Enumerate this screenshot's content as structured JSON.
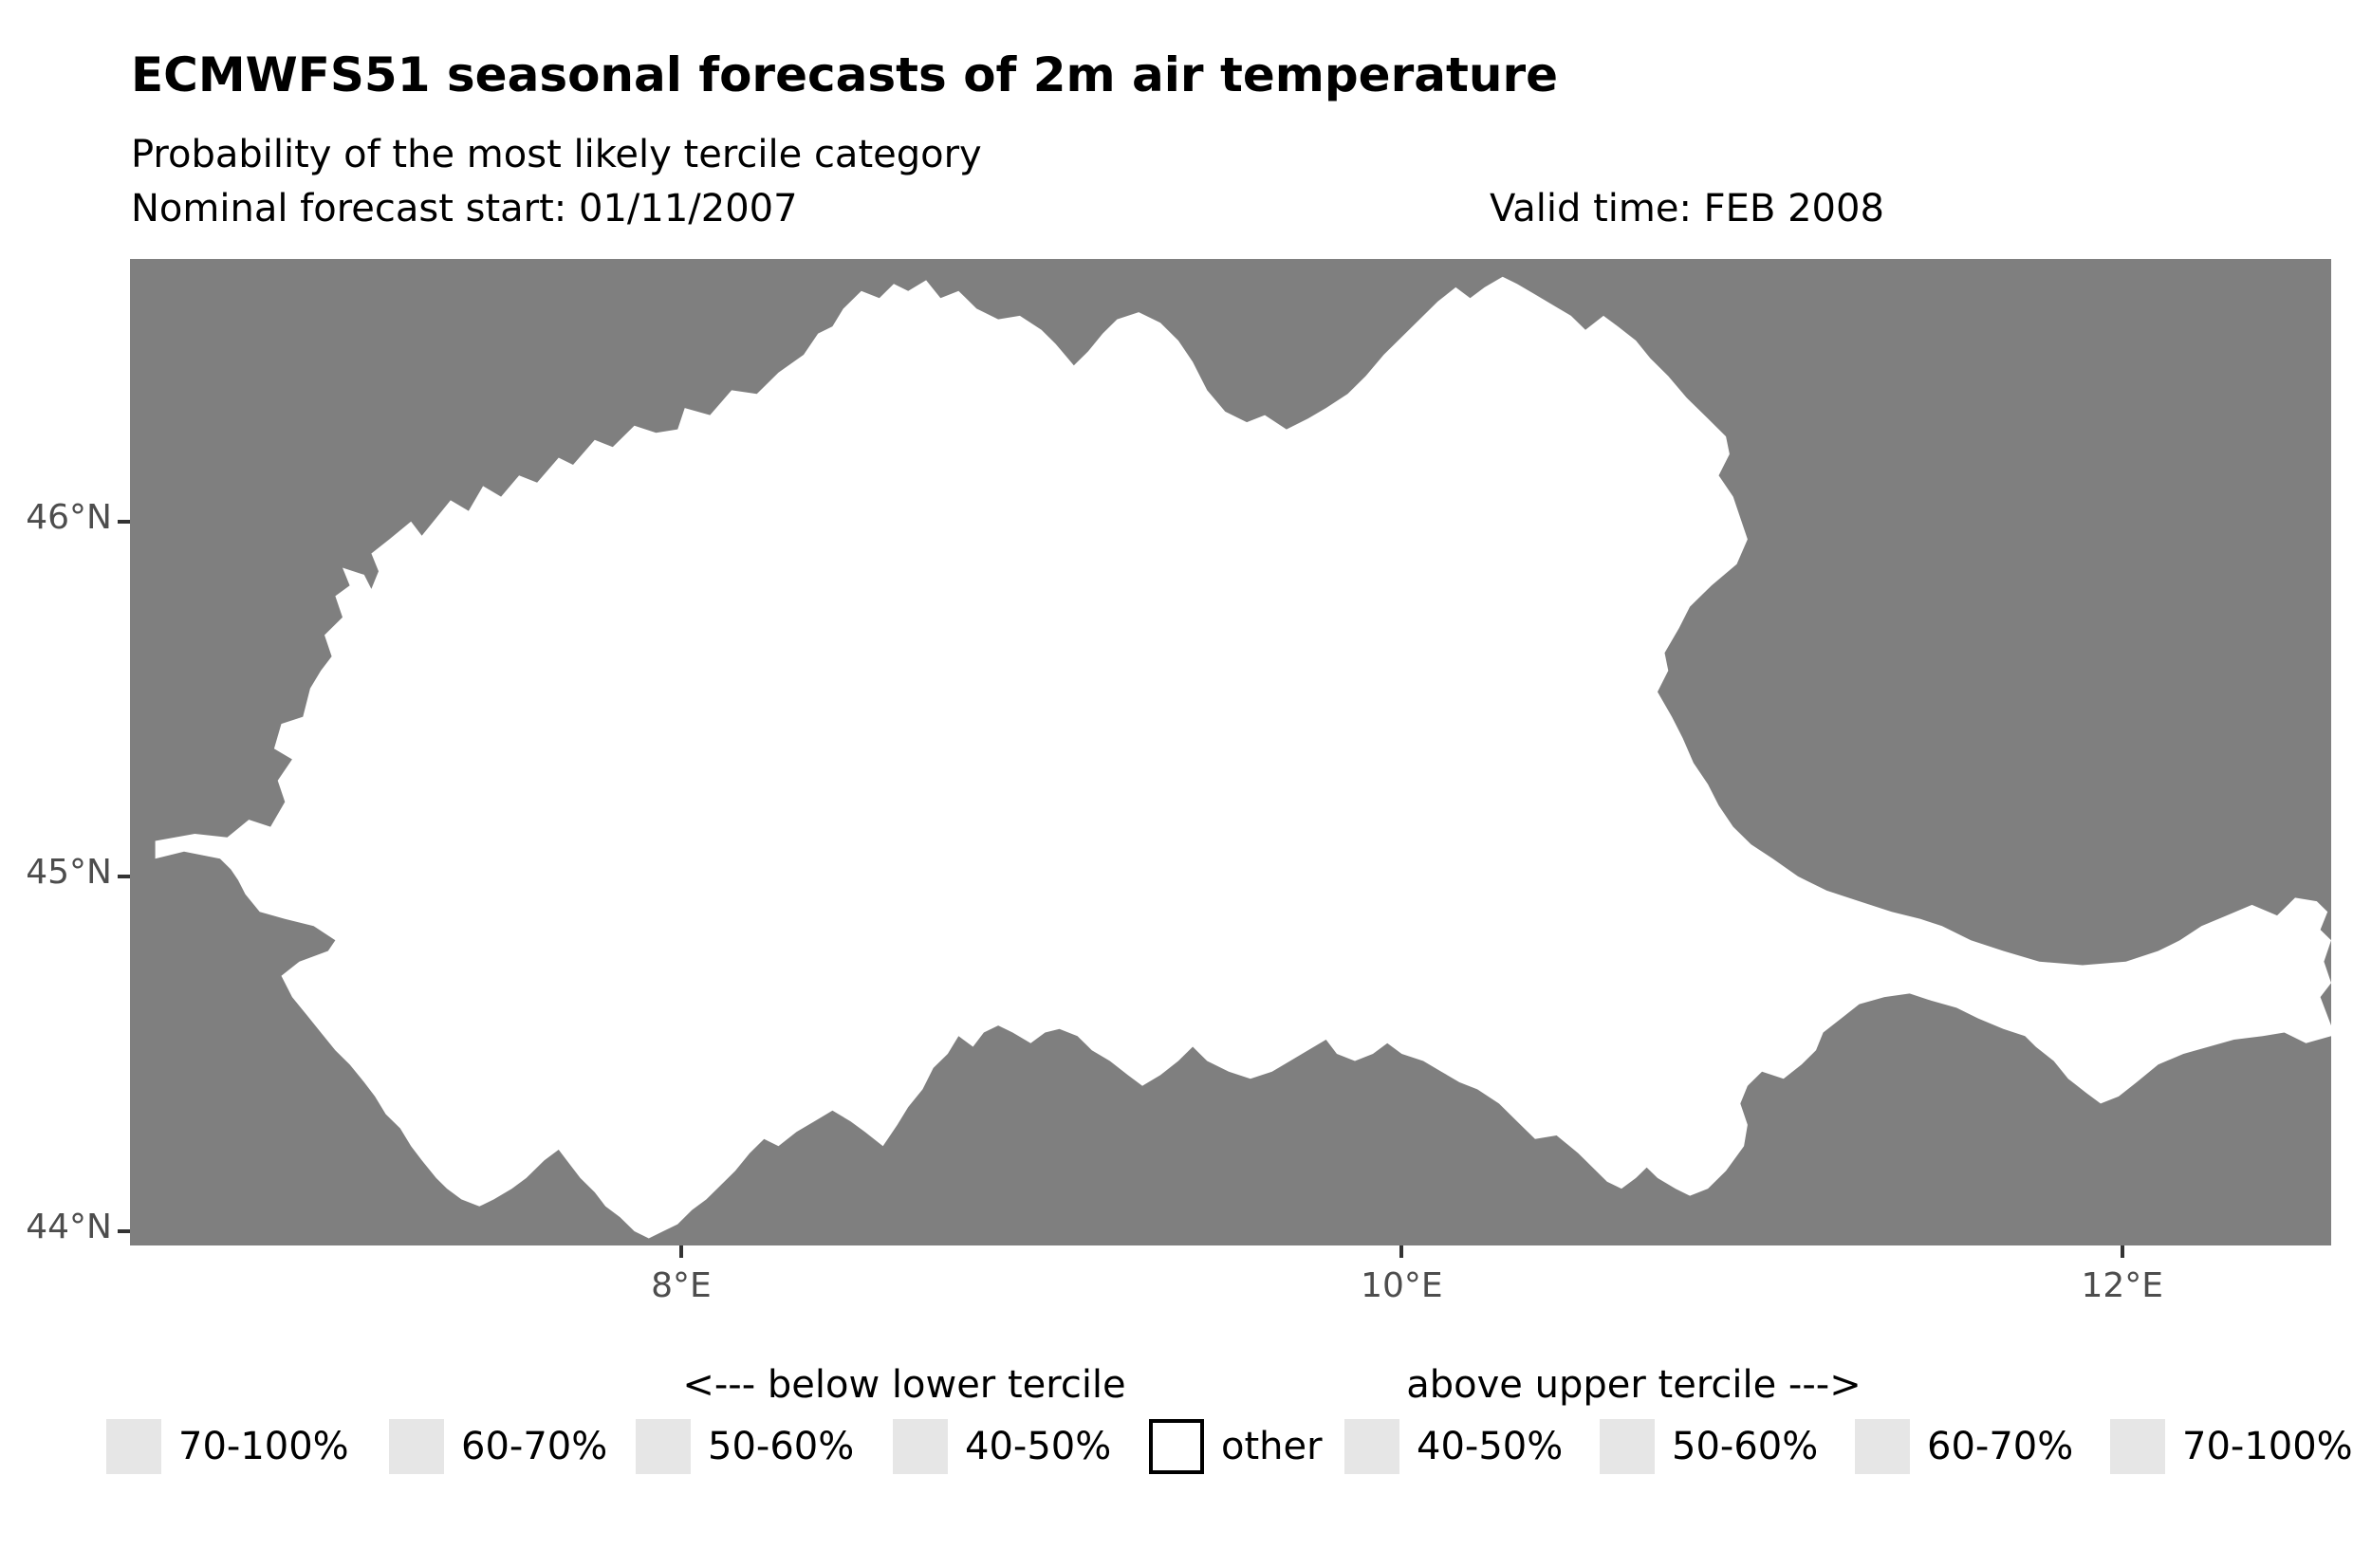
{
  "header": {
    "title": "ECMWFS51 seasonal forecasts of 2m air temperature",
    "subtitle": "Probability of the most likely tercile category",
    "forecast_start": "Nominal forecast start: 01/11/2007",
    "valid_time": "Valid time: FEB 2008"
  },
  "colors": {
    "page_background": "#ffffff",
    "map_background": "#7f7f7f",
    "region_fill": "#ffffff",
    "legend_swatch_fill": "#e6e6e6",
    "other_swatch_fill": "#ffffff",
    "other_swatch_border": "#000000",
    "axis_text": "#4d4d4d",
    "tick_mark": "#333333"
  },
  "legend": {
    "left_header": "<--- below lower tercile",
    "right_header": "above upper tercile --->",
    "items": [
      {
        "label": "70-100%",
        "type": "tercile"
      },
      {
        "label": "60-70%",
        "type": "tercile"
      },
      {
        "label": "50-60%",
        "type": "tercile"
      },
      {
        "label": "40-50%",
        "type": "tercile"
      },
      {
        "label": "other",
        "type": "other"
      },
      {
        "label": "40-50%",
        "type": "tercile"
      },
      {
        "label": "50-60%",
        "type": "tercile"
      },
      {
        "label": "60-70%",
        "type": "tercile"
      },
      {
        "label": "70-100%",
        "type": "tercile"
      }
    ]
  },
  "chart_data": {
    "type": "map",
    "projection": "lonlat",
    "x_axis": {
      "range": [
        6.47,
        12.58
      ],
      "ticks": [
        {
          "value": 8,
          "label": "8°E"
        },
        {
          "value": 10,
          "label": "10°E"
        },
        {
          "value": 12,
          "label": "12°E"
        }
      ]
    },
    "y_axis": {
      "range": [
        43.96,
        46.74
      ],
      "ticks": [
        {
          "value": 44,
          "label": "44°N"
        },
        {
          "value": 45,
          "label": "45°N"
        },
        {
          "value": 46,
          "label": "46°N"
        }
      ]
    },
    "region_category": "other",
    "region_outline_lonlat": [
      [
        6.54,
        45.05
      ],
      [
        6.54,
        45.1
      ],
      [
        6.65,
        45.12
      ],
      [
        6.74,
        45.11
      ],
      [
        6.8,
        45.16
      ],
      [
        6.86,
        45.14
      ],
      [
        6.9,
        45.21
      ],
      [
        6.88,
        45.27
      ],
      [
        6.92,
        45.33
      ],
      [
        6.87,
        45.36
      ],
      [
        6.89,
        45.43
      ],
      [
        6.95,
        45.45
      ],
      [
        6.97,
        45.53
      ],
      [
        7.0,
        45.58
      ],
      [
        7.03,
        45.62
      ],
      [
        7.01,
        45.68
      ],
      [
        7.06,
        45.73
      ],
      [
        7.04,
        45.79
      ],
      [
        7.08,
        45.82
      ],
      [
        7.06,
        45.87
      ],
      [
        7.12,
        45.85
      ],
      [
        7.14,
        45.81
      ],
      [
        7.16,
        45.86
      ],
      [
        7.14,
        45.91
      ],
      [
        7.19,
        45.95
      ],
      [
        7.25,
        46.0
      ],
      [
        7.28,
        45.96
      ],
      [
        7.32,
        46.01
      ],
      [
        7.36,
        46.06
      ],
      [
        7.41,
        46.03
      ],
      [
        7.45,
        46.1
      ],
      [
        7.5,
        46.07
      ],
      [
        7.55,
        46.13
      ],
      [
        7.6,
        46.11
      ],
      [
        7.66,
        46.18
      ],
      [
        7.7,
        46.16
      ],
      [
        7.76,
        46.23
      ],
      [
        7.81,
        46.21
      ],
      [
        7.87,
        46.27
      ],
      [
        7.93,
        46.25
      ],
      [
        7.99,
        46.26
      ],
      [
        8.01,
        46.32
      ],
      [
        8.08,
        46.3
      ],
      [
        8.14,
        46.37
      ],
      [
        8.21,
        46.36
      ],
      [
        8.27,
        46.42
      ],
      [
        8.34,
        46.47
      ],
      [
        8.38,
        46.53
      ],
      [
        8.42,
        46.55
      ],
      [
        8.45,
        46.6
      ],
      [
        8.5,
        46.65
      ],
      [
        8.55,
        46.63
      ],
      [
        8.59,
        46.67
      ],
      [
        8.63,
        46.65
      ],
      [
        8.68,
        46.68
      ],
      [
        8.72,
        46.63
      ],
      [
        8.77,
        46.65
      ],
      [
        8.82,
        46.6
      ],
      [
        8.88,
        46.57
      ],
      [
        8.94,
        46.58
      ],
      [
        9.0,
        46.54
      ],
      [
        9.04,
        46.5
      ],
      [
        9.09,
        46.44
      ],
      [
        9.13,
        46.48
      ],
      [
        9.17,
        46.53
      ],
      [
        9.21,
        46.57
      ],
      [
        9.27,
        46.59
      ],
      [
        9.33,
        46.56
      ],
      [
        9.38,
        46.51
      ],
      [
        9.42,
        46.45
      ],
      [
        9.46,
        46.37
      ],
      [
        9.51,
        46.31
      ],
      [
        9.57,
        46.28
      ],
      [
        9.62,
        46.3
      ],
      [
        9.68,
        46.26
      ],
      [
        9.74,
        46.29
      ],
      [
        9.79,
        46.32
      ],
      [
        9.85,
        46.36
      ],
      [
        9.9,
        46.41
      ],
      [
        9.95,
        46.47
      ],
      [
        10.0,
        46.52
      ],
      [
        10.06,
        46.58
      ],
      [
        10.1,
        46.62
      ],
      [
        10.15,
        46.66
      ],
      [
        10.19,
        46.63
      ],
      [
        10.23,
        46.66
      ],
      [
        10.28,
        46.69
      ],
      [
        10.32,
        46.67
      ],
      [
        10.37,
        46.64
      ],
      [
        10.42,
        46.61
      ],
      [
        10.47,
        46.58
      ],
      [
        10.51,
        46.54
      ],
      [
        10.56,
        46.58
      ],
      [
        10.6,
        46.55
      ],
      [
        10.65,
        46.51
      ],
      [
        10.69,
        46.46
      ],
      [
        10.74,
        46.41
      ],
      [
        10.79,
        46.35
      ],
      [
        10.85,
        46.29
      ],
      [
        10.9,
        46.24
      ],
      [
        10.91,
        46.19
      ],
      [
        10.88,
        46.13
      ],
      [
        10.92,
        46.07
      ],
      [
        10.94,
        46.01
      ],
      [
        10.96,
        45.95
      ],
      [
        10.93,
        45.88
      ],
      [
        10.86,
        45.82
      ],
      [
        10.8,
        45.76
      ],
      [
        10.77,
        45.7
      ],
      [
        10.73,
        45.63
      ],
      [
        10.74,
        45.58
      ],
      [
        10.71,
        45.52
      ],
      [
        10.75,
        45.45
      ],
      [
        10.78,
        45.39
      ],
      [
        10.81,
        45.32
      ],
      [
        10.85,
        45.26
      ],
      [
        10.88,
        45.2
      ],
      [
        10.92,
        45.14
      ],
      [
        10.97,
        45.09
      ],
      [
        11.03,
        45.05
      ],
      [
        11.1,
        45.0
      ],
      [
        11.18,
        44.96
      ],
      [
        11.27,
        44.93
      ],
      [
        11.36,
        44.9
      ],
      [
        11.44,
        44.88
      ],
      [
        11.5,
        44.86
      ],
      [
        11.58,
        44.82
      ],
      [
        11.67,
        44.79
      ],
      [
        11.77,
        44.76
      ],
      [
        11.89,
        44.75
      ],
      [
        12.01,
        44.76
      ],
      [
        12.1,
        44.79
      ],
      [
        12.16,
        44.82
      ],
      [
        12.22,
        44.86
      ],
      [
        12.29,
        44.89
      ],
      [
        12.36,
        44.92
      ],
      [
        12.43,
        44.89
      ],
      [
        12.48,
        44.94
      ],
      [
        12.54,
        44.93
      ],
      [
        12.57,
        44.9
      ],
      [
        12.55,
        44.85
      ],
      [
        12.58,
        44.82
      ],
      [
        12.56,
        44.76
      ],
      [
        12.58,
        44.7
      ],
      [
        12.55,
        44.66
      ],
      [
        12.58,
        44.58
      ],
      [
        12.58,
        44.55
      ],
      [
        12.51,
        44.53
      ],
      [
        12.45,
        44.56
      ],
      [
        12.39,
        44.55
      ],
      [
        12.31,
        44.54
      ],
      [
        12.24,
        44.52
      ],
      [
        12.17,
        44.5
      ],
      [
        12.1,
        44.47
      ],
      [
        12.04,
        44.42
      ],
      [
        11.99,
        44.38
      ],
      [
        11.94,
        44.36
      ],
      [
        11.9,
        44.39
      ],
      [
        11.85,
        44.43
      ],
      [
        11.81,
        44.48
      ],
      [
        11.76,
        44.52
      ],
      [
        11.73,
        44.55
      ],
      [
        11.67,
        44.57
      ],
      [
        11.6,
        44.6
      ],
      [
        11.54,
        44.63
      ],
      [
        11.47,
        44.65
      ],
      [
        11.41,
        44.67
      ],
      [
        11.34,
        44.66
      ],
      [
        11.27,
        44.64
      ],
      [
        11.22,
        44.6
      ],
      [
        11.17,
        44.56
      ],
      [
        11.15,
        44.51
      ],
      [
        11.11,
        44.47
      ],
      [
        11.06,
        44.43
      ],
      [
        11.0,
        44.45
      ],
      [
        10.96,
        44.41
      ],
      [
        10.94,
        44.36
      ],
      [
        10.96,
        44.3
      ],
      [
        10.95,
        44.24
      ],
      [
        10.9,
        44.17
      ],
      [
        10.85,
        44.12
      ],
      [
        10.8,
        44.1
      ],
      [
        10.76,
        44.12
      ],
      [
        10.71,
        44.15
      ],
      [
        10.68,
        44.18
      ],
      [
        10.65,
        44.15
      ],
      [
        10.61,
        44.12
      ],
      [
        10.57,
        44.14
      ],
      [
        10.53,
        44.18
      ],
      [
        10.49,
        44.22
      ],
      [
        10.43,
        44.27
      ],
      [
        10.37,
        44.26
      ],
      [
        10.32,
        44.31
      ],
      [
        10.27,
        44.36
      ],
      [
        10.21,
        44.4
      ],
      [
        10.16,
        44.42
      ],
      [
        10.11,
        44.45
      ],
      [
        10.06,
        44.48
      ],
      [
        10.0,
        44.5
      ],
      [
        9.96,
        44.53
      ],
      [
        9.92,
        44.5
      ],
      [
        9.87,
        44.48
      ],
      [
        9.82,
        44.5
      ],
      [
        9.79,
        44.54
      ],
      [
        9.74,
        44.51
      ],
      [
        9.69,
        44.48
      ],
      [
        9.64,
        44.45
      ],
      [
        9.58,
        44.43
      ],
      [
        9.52,
        44.45
      ],
      [
        9.46,
        44.48
      ],
      [
        9.42,
        44.52
      ],
      [
        9.38,
        44.48
      ],
      [
        9.33,
        44.44
      ],
      [
        9.28,
        44.41
      ],
      [
        9.24,
        44.44
      ],
      [
        9.19,
        44.48
      ],
      [
        9.14,
        44.51
      ],
      [
        9.1,
        44.55
      ],
      [
        9.05,
        44.57
      ],
      [
        9.01,
        44.56
      ],
      [
        8.97,
        44.53
      ],
      [
        8.92,
        44.56
      ],
      [
        8.88,
        44.58
      ],
      [
        8.84,
        44.56
      ],
      [
        8.81,
        44.52
      ],
      [
        8.77,
        44.55
      ],
      [
        8.74,
        44.5
      ],
      [
        8.7,
        44.46
      ],
      [
        8.67,
        44.4
      ],
      [
        8.63,
        44.35
      ],
      [
        8.6,
        44.3
      ],
      [
        8.56,
        44.24
      ],
      [
        8.51,
        44.28
      ],
      [
        8.47,
        44.31
      ],
      [
        8.42,
        44.34
      ],
      [
        8.37,
        44.31
      ],
      [
        8.32,
        44.28
      ],
      [
        8.27,
        44.24
      ],
      [
        8.23,
        44.26
      ],
      [
        8.19,
        44.22
      ],
      [
        8.15,
        44.17
      ],
      [
        8.11,
        44.13
      ],
      [
        8.07,
        44.09
      ],
      [
        8.03,
        44.06
      ],
      [
        7.99,
        44.02
      ],
      [
        7.95,
        44.0
      ],
      [
        7.91,
        43.98
      ],
      [
        7.87,
        44.0
      ],
      [
        7.83,
        44.04
      ],
      [
        7.79,
        44.07
      ],
      [
        7.76,
        44.11
      ],
      [
        7.72,
        44.15
      ],
      [
        7.69,
        44.19
      ],
      [
        7.66,
        44.23
      ],
      [
        7.62,
        44.2
      ],
      [
        7.57,
        44.15
      ],
      [
        7.53,
        44.12
      ],
      [
        7.48,
        44.09
      ],
      [
        7.44,
        44.07
      ],
      [
        7.39,
        44.09
      ],
      [
        7.35,
        44.12
      ],
      [
        7.32,
        44.15
      ],
      [
        7.28,
        44.2
      ],
      [
        7.25,
        44.24
      ],
      [
        7.22,
        44.29
      ],
      [
        7.18,
        44.33
      ],
      [
        7.15,
        44.38
      ],
      [
        7.12,
        44.42
      ],
      [
        7.08,
        44.47
      ],
      [
        7.04,
        44.51
      ],
      [
        7.0,
        44.56
      ],
      [
        6.96,
        44.61
      ],
      [
        6.92,
        44.66
      ],
      [
        6.89,
        44.72
      ],
      [
        6.94,
        44.76
      ],
      [
        7.02,
        44.79
      ],
      [
        7.04,
        44.82
      ],
      [
        6.98,
        44.86
      ],
      [
        6.9,
        44.88
      ],
      [
        6.83,
        44.9
      ],
      [
        6.79,
        44.95
      ],
      [
        6.77,
        44.99
      ],
      [
        6.75,
        45.02
      ],
      [
        6.72,
        45.05
      ],
      [
        6.67,
        45.06
      ],
      [
        6.62,
        45.07
      ],
      [
        6.58,
        45.06
      ]
    ]
  }
}
